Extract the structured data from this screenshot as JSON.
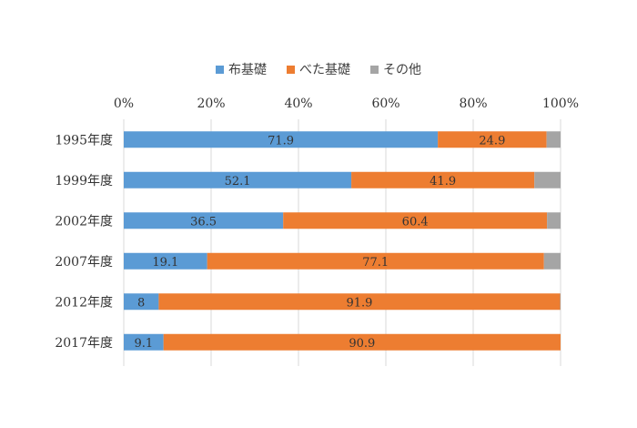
{
  "chart_data": {
    "type": "bar",
    "orientation": "horizontal",
    "stacked": "percent",
    "categories": [
      "1995年度",
      "1999年度",
      "2002年度",
      "2007年度",
      "2012年度",
      "2017年度"
    ],
    "series": [
      {
        "name": "布基礎",
        "color": "#5B9BD5",
        "values": [
          71.9,
          52.1,
          36.5,
          19.1,
          8,
          9.1
        ]
      },
      {
        "name": "べた基礎",
        "color": "#ED7D31",
        "values": [
          24.9,
          41.9,
          60.4,
          77.1,
          91.9,
          90.9
        ]
      },
      {
        "name": "その他",
        "color": "#A5A5A5",
        "values": [
          3.2,
          6.0,
          3.1,
          3.8,
          0.1,
          0.0
        ]
      }
    ],
    "data_labels_series": [
      "布基礎",
      "べた基礎"
    ],
    "xticks": [
      "0%",
      "20%",
      "40%",
      "60%",
      "80%",
      "100%"
    ],
    "xlim": [
      0,
      100
    ],
    "legend_position": "top",
    "grid": true
  }
}
